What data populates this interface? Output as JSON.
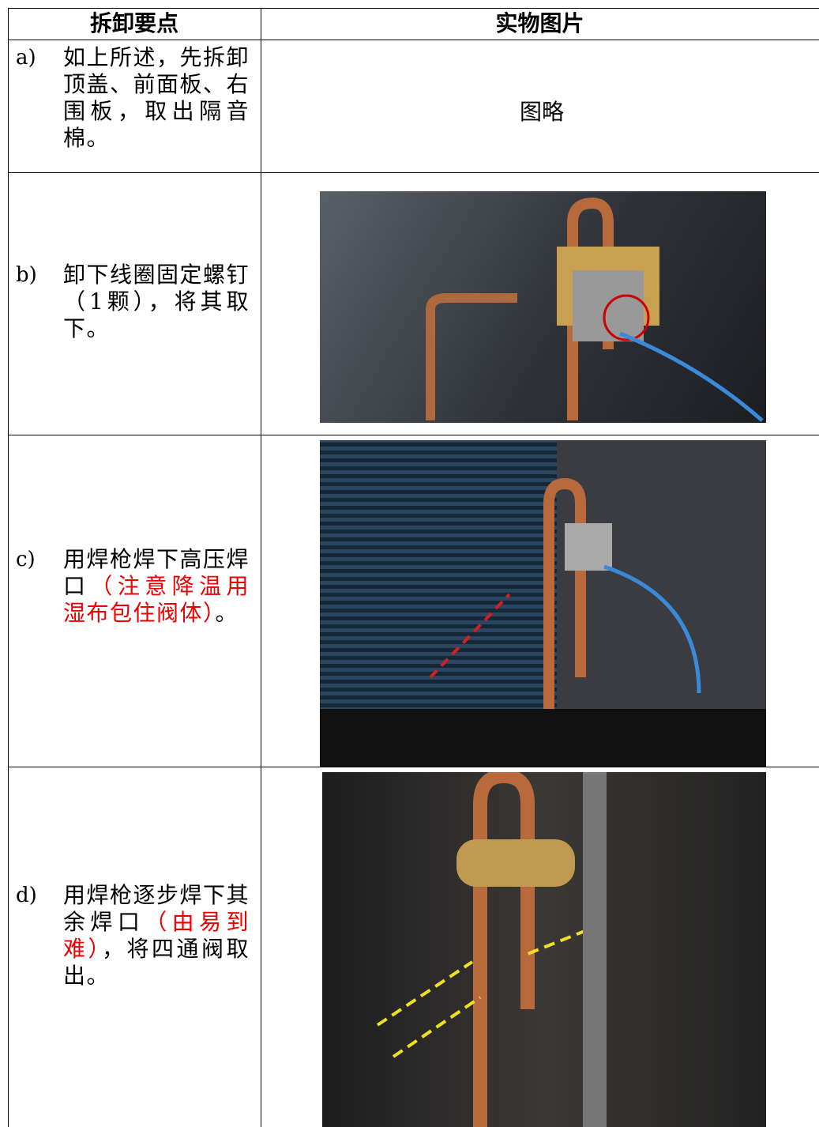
{
  "table": {
    "headers": [
      "拆卸要点",
      "实物图片"
    ],
    "rows": [
      {
        "label": "a)",
        "text": "如上所述，先拆卸顶盖、前面板、右围板，取出隔音棉。",
        "placeholder": "图略"
      },
      {
        "label": "b)",
        "text": "卸下线圈固定螺钉（1颗），将其取下。"
      },
      {
        "label": "c)",
        "text": "用焊枪焊下高压焊口",
        "note": "（注意降温用湿布包住阀体）",
        "tail": "。"
      },
      {
        "label": "d)",
        "text": "用焊枪逐步焊下其余焊口",
        "note": "（由易到难）",
        "tail": "，将四通阀取出。"
      }
    ]
  }
}
